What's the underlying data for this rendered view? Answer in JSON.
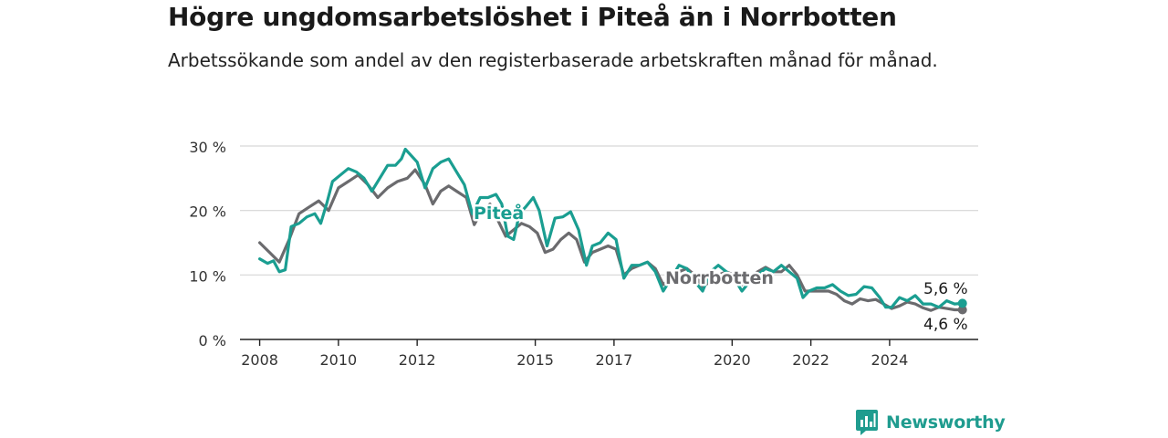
{
  "title": "Högre ungdomsarbetslöshet i Piteå än i Norrbotten",
  "subtitle": "Arbetssökande som andel av den registerbaserade arbetskraften månad för månad.",
  "brand": {
    "name": "Newsworthy",
    "icon": "newsworthy-logo-icon",
    "color": "#1f9c8f"
  },
  "chart_data": {
    "type": "line",
    "ylim": [
      0,
      30
    ],
    "y_ticks": [
      {
        "value": 0,
        "label": "0 %"
      },
      {
        "value": 10,
        "label": "10 %"
      },
      {
        "value": 20,
        "label": "20 %"
      },
      {
        "value": 30,
        "label": "30 %"
      }
    ],
    "xlim": [
      2007.5,
      2026.25
    ],
    "x_ticks": [
      {
        "value": 2008,
        "label": "2008"
      },
      {
        "value": 2010,
        "label": "2010"
      },
      {
        "value": 2012,
        "label": "2012"
      },
      {
        "value": 2015,
        "label": "2015"
      },
      {
        "value": 2017,
        "label": "2017"
      },
      {
        "value": 2020,
        "label": "2020"
      },
      {
        "value": 2022,
        "label": "2022"
      },
      {
        "value": 2024,
        "label": "2024"
      }
    ],
    "grid": true,
    "series": [
      {
        "name": "Norrbotten",
        "color": "#6b6b6e",
        "end_label": "4,6 %",
        "points": [
          [
            2008.0,
            15.0
          ],
          [
            2008.25,
            13.5
          ],
          [
            2008.5,
            12.0
          ],
          [
            2008.75,
            15.5
          ],
          [
            2009.0,
            19.5
          ],
          [
            2009.25,
            20.5
          ],
          [
            2009.5,
            21.5
          ],
          [
            2009.75,
            20.0
          ],
          [
            2010.0,
            23.5
          ],
          [
            2010.25,
            24.5
          ],
          [
            2010.5,
            25.5
          ],
          [
            2010.75,
            24.0
          ],
          [
            2011.0,
            22.0
          ],
          [
            2011.25,
            23.5
          ],
          [
            2011.5,
            24.5
          ],
          [
            2011.75,
            25.0
          ],
          [
            2011.95,
            26.3
          ],
          [
            2012.2,
            24.0
          ],
          [
            2012.4,
            21.0
          ],
          [
            2012.6,
            23.0
          ],
          [
            2012.8,
            23.8
          ],
          [
            2013.0,
            23.0
          ],
          [
            2013.25,
            22.0
          ],
          [
            2013.45,
            17.8
          ],
          [
            2013.65,
            20.0
          ],
          [
            2013.85,
            21.0
          ],
          [
            2014.05,
            18.5
          ],
          [
            2014.25,
            16.0
          ],
          [
            2014.45,
            17.0
          ],
          [
            2014.65,
            18.0
          ],
          [
            2014.85,
            17.5
          ],
          [
            2015.05,
            16.5
          ],
          [
            2015.25,
            13.5
          ],
          [
            2015.45,
            14.0
          ],
          [
            2015.65,
            15.5
          ],
          [
            2015.85,
            16.5
          ],
          [
            2016.05,
            15.5
          ],
          [
            2016.25,
            12.0
          ],
          [
            2016.45,
            13.5
          ],
          [
            2016.65,
            14.0
          ],
          [
            2016.85,
            14.5
          ],
          [
            2017.05,
            14.0
          ],
          [
            2017.25,
            10.0
          ],
          [
            2017.45,
            11.0
          ],
          [
            2017.65,
            11.5
          ],
          [
            2017.85,
            12.0
          ],
          [
            2018.05,
            11.0
          ],
          [
            2018.25,
            8.5
          ],
          [
            2018.45,
            9.5
          ],
          [
            2018.65,
            10.5
          ],
          [
            2018.85,
            11.0
          ],
          [
            2019.05,
            10.0
          ],
          [
            2019.25,
            8.2
          ],
          [
            2019.45,
            9.0
          ],
          [
            2019.65,
            10.0
          ],
          [
            2019.85,
            10.5
          ],
          [
            2020.05,
            10.0
          ],
          [
            2020.25,
            8.5
          ],
          [
            2020.45,
            9.5
          ],
          [
            2020.65,
            10.5
          ],
          [
            2020.85,
            11.2
          ],
          [
            2021.05,
            10.5
          ],
          [
            2021.25,
            10.5
          ],
          [
            2021.45,
            11.5
          ],
          [
            2021.65,
            10.0
          ],
          [
            2021.85,
            7.5
          ],
          [
            2022.05,
            7.5
          ],
          [
            2022.25,
            7.5
          ],
          [
            2022.45,
            7.5
          ],
          [
            2022.65,
            7.0
          ],
          [
            2022.85,
            6.0
          ],
          [
            2023.05,
            5.5
          ],
          [
            2023.25,
            6.3
          ],
          [
            2023.45,
            6.0
          ],
          [
            2023.65,
            6.2
          ],
          [
            2023.85,
            5.5
          ],
          [
            2024.05,
            4.8
          ],
          [
            2024.25,
            5.2
          ],
          [
            2024.45,
            5.8
          ],
          [
            2024.65,
            5.5
          ],
          [
            2024.85,
            4.9
          ],
          [
            2025.05,
            4.5
          ],
          [
            2025.25,
            5.0
          ],
          [
            2025.45,
            4.8
          ],
          [
            2025.65,
            4.6
          ],
          [
            2025.85,
            4.6
          ]
        ]
      },
      {
        "name": "Piteå",
        "color": "#1a9e91",
        "end_label": "5,6 %",
        "points": [
          [
            2008.0,
            12.5
          ],
          [
            2008.2,
            11.8
          ],
          [
            2008.35,
            12.2
          ],
          [
            2008.5,
            10.5
          ],
          [
            2008.65,
            10.8
          ],
          [
            2008.8,
            17.5
          ],
          [
            2009.0,
            18.0
          ],
          [
            2009.2,
            19.0
          ],
          [
            2009.4,
            19.5
          ],
          [
            2009.55,
            18.0
          ],
          [
            2009.7,
            21.0
          ],
          [
            2009.85,
            24.5
          ],
          [
            2010.05,
            25.5
          ],
          [
            2010.25,
            26.5
          ],
          [
            2010.45,
            26.0
          ],
          [
            2010.65,
            25.0
          ],
          [
            2010.85,
            23.0
          ],
          [
            2011.05,
            25.0
          ],
          [
            2011.25,
            27.0
          ],
          [
            2011.45,
            27.0
          ],
          [
            2011.6,
            28.0
          ],
          [
            2011.7,
            29.5
          ],
          [
            2011.85,
            28.5
          ],
          [
            2012.0,
            27.5
          ],
          [
            2012.2,
            23.5
          ],
          [
            2012.4,
            26.5
          ],
          [
            2012.6,
            27.5
          ],
          [
            2012.8,
            28.0
          ],
          [
            2013.0,
            26.0
          ],
          [
            2013.2,
            24.0
          ],
          [
            2013.4,
            19.5
          ],
          [
            2013.6,
            22.0
          ],
          [
            2013.8,
            22.0
          ],
          [
            2014.0,
            22.5
          ],
          [
            2014.15,
            21.0
          ],
          [
            2014.3,
            16.0
          ],
          [
            2014.45,
            15.5
          ],
          [
            2014.6,
            19.5
          ],
          [
            2014.75,
            20.5
          ],
          [
            2014.95,
            22.0
          ],
          [
            2015.1,
            20.0
          ],
          [
            2015.3,
            14.5
          ],
          [
            2015.5,
            18.8
          ],
          [
            2015.7,
            19.0
          ],
          [
            2015.9,
            19.8
          ],
          [
            2016.1,
            17.0
          ],
          [
            2016.3,
            11.5
          ],
          [
            2016.45,
            14.5
          ],
          [
            2016.65,
            15.0
          ],
          [
            2016.85,
            16.5
          ],
          [
            2017.05,
            15.5
          ],
          [
            2017.25,
            9.5
          ],
          [
            2017.45,
            11.5
          ],
          [
            2017.65,
            11.5
          ],
          [
            2017.85,
            12.0
          ],
          [
            2018.05,
            10.5
          ],
          [
            2018.25,
            7.5
          ],
          [
            2018.45,
            9.5
          ],
          [
            2018.65,
            11.5
          ],
          [
            2018.85,
            11.0
          ],
          [
            2019.05,
            9.0
          ],
          [
            2019.25,
            7.5
          ],
          [
            2019.45,
            10.5
          ],
          [
            2019.65,
            11.5
          ],
          [
            2019.85,
            10.5
          ],
          [
            2020.05,
            9.5
          ],
          [
            2020.25,
            7.5
          ],
          [
            2020.45,
            9.0
          ],
          [
            2020.65,
            10.0
          ],
          [
            2020.85,
            11.0
          ],
          [
            2021.05,
            10.5
          ],
          [
            2021.25,
            11.5
          ],
          [
            2021.45,
            10.5
          ],
          [
            2021.65,
            9.5
          ],
          [
            2021.8,
            6.5
          ],
          [
            2021.95,
            7.5
          ],
          [
            2022.15,
            8.0
          ],
          [
            2022.35,
            8.0
          ],
          [
            2022.55,
            8.5
          ],
          [
            2022.75,
            7.5
          ],
          [
            2022.95,
            6.8
          ],
          [
            2023.15,
            7.0
          ],
          [
            2023.35,
            8.2
          ],
          [
            2023.55,
            8.0
          ],
          [
            2023.75,
            6.5
          ],
          [
            2023.9,
            5.0
          ],
          [
            2024.05,
            5.0
          ],
          [
            2024.25,
            6.5
          ],
          [
            2024.45,
            6.0
          ],
          [
            2024.65,
            6.8
          ],
          [
            2024.85,
            5.5
          ],
          [
            2025.05,
            5.5
          ],
          [
            2025.25,
            5.0
          ],
          [
            2025.45,
            6.0
          ],
          [
            2025.65,
            5.5
          ],
          [
            2025.85,
            5.6
          ]
        ]
      }
    ]
  }
}
